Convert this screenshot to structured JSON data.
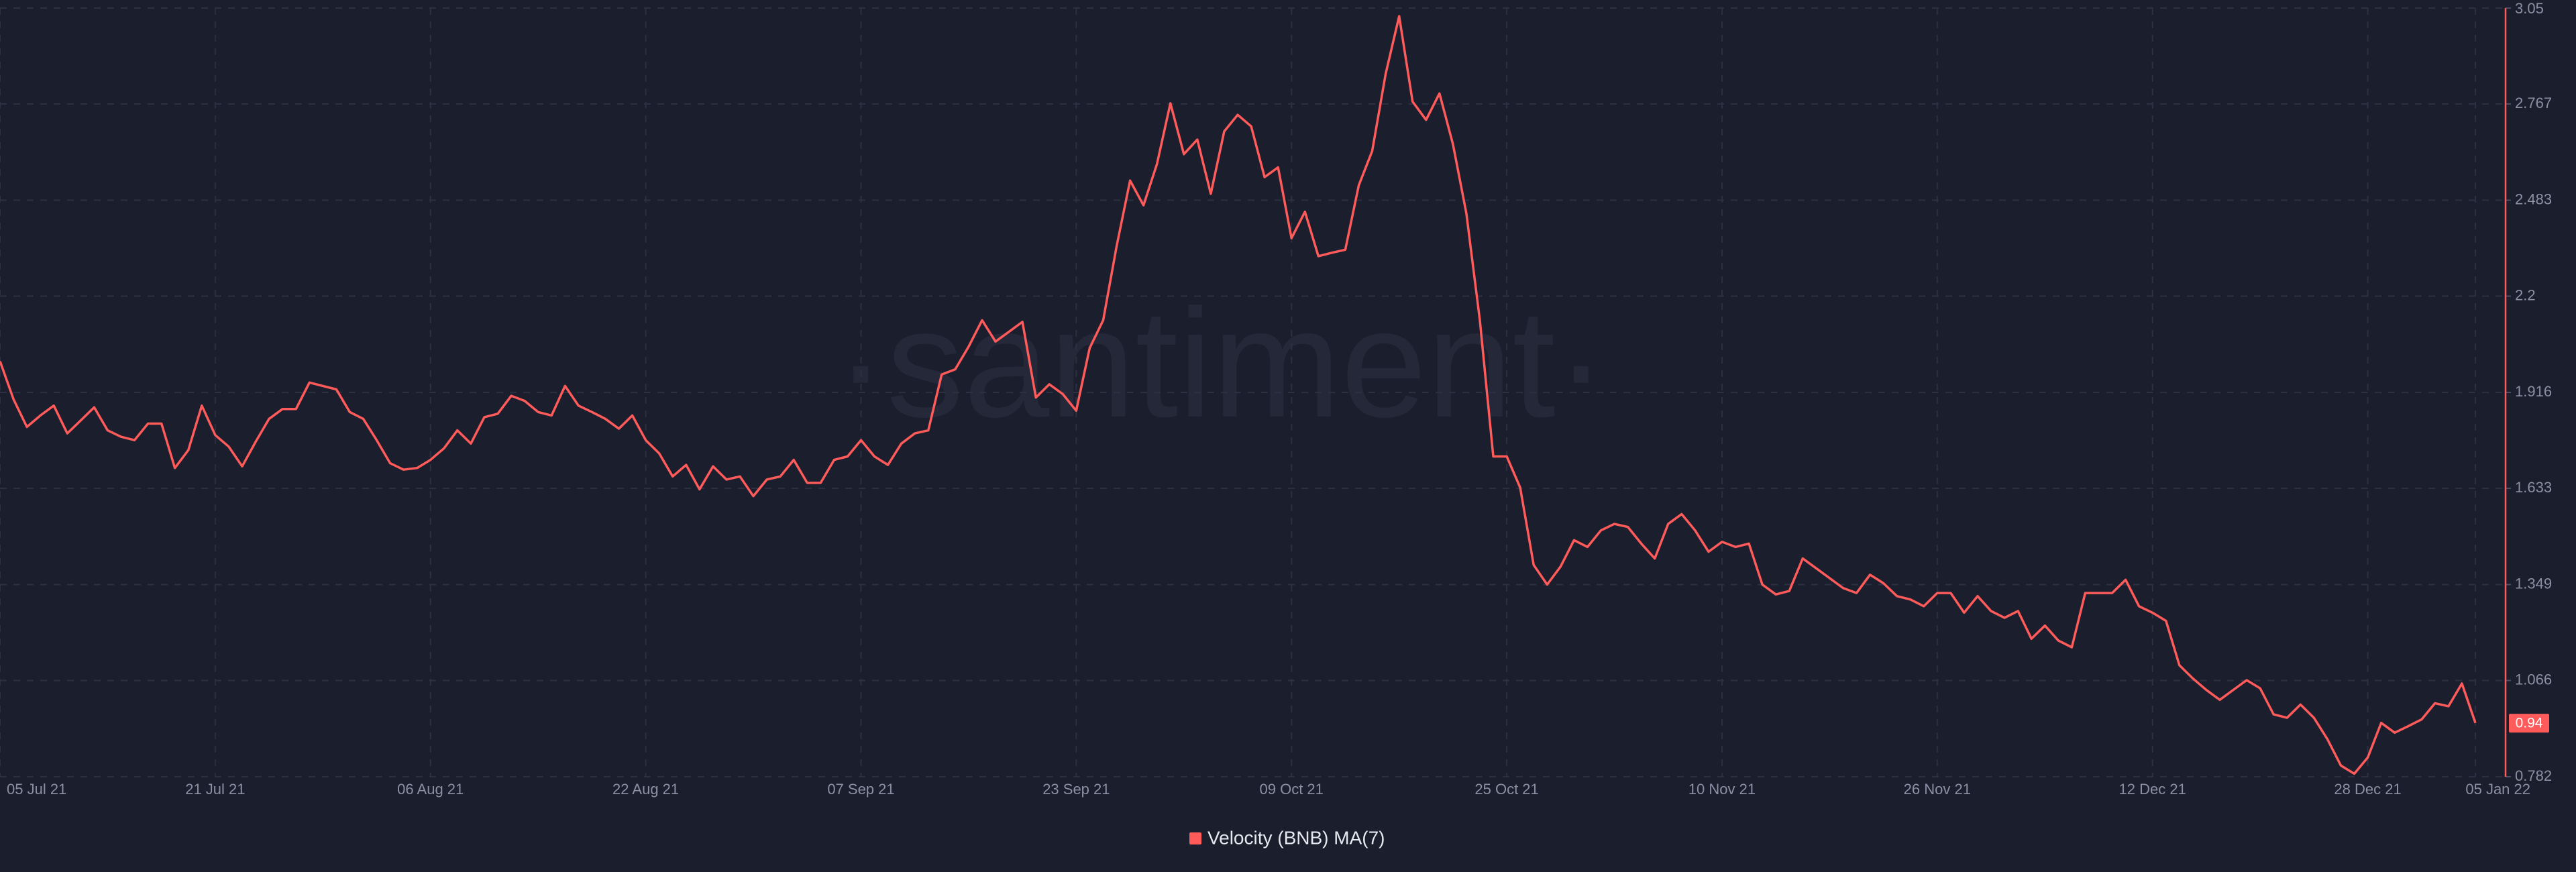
{
  "chart_data": {
    "type": "line",
    "watermark": "·santiment·",
    "categories": [
      "05 Jul 21",
      null,
      null,
      null,
      null,
      null,
      null,
      null,
      null,
      null,
      null,
      null,
      null,
      null,
      null,
      null,
      "21 Jul 21",
      null,
      null,
      null,
      null,
      null,
      null,
      null,
      null,
      null,
      null,
      null,
      null,
      null,
      null,
      null,
      "06 Aug 21",
      null,
      null,
      null,
      null,
      null,
      null,
      null,
      null,
      null,
      null,
      null,
      null,
      null,
      null,
      null,
      "22 Aug 21",
      null,
      null,
      null,
      null,
      null,
      null,
      null,
      null,
      null,
      null,
      null,
      null,
      null,
      null,
      null,
      "07 Sep 21",
      null,
      null,
      null,
      null,
      null,
      null,
      null,
      null,
      null,
      null,
      null,
      null,
      null,
      null,
      null,
      "23 Sep 21",
      null,
      null,
      null,
      null,
      null,
      null,
      null,
      null,
      null,
      null,
      null,
      null,
      null,
      null,
      null,
      "09 Oct 21",
      null,
      null,
      null,
      null,
      null,
      null,
      null,
      null,
      null,
      null,
      null,
      null,
      null,
      null,
      null,
      "25 Oct 21",
      null,
      null,
      null,
      null,
      null,
      null,
      null,
      null,
      null,
      null,
      null,
      null,
      null,
      null,
      null,
      "10 Nov 21",
      null,
      null,
      null,
      null,
      null,
      null,
      null,
      null,
      null,
      null,
      null,
      null,
      null,
      null,
      null,
      "26 Nov 21",
      null,
      null,
      null,
      null,
      null,
      null,
      null,
      null,
      null,
      null,
      null,
      null,
      null,
      null,
      null,
      "12 Dec 21",
      null,
      null,
      null,
      null,
      null,
      null,
      null,
      null,
      null,
      null,
      null,
      null,
      null,
      null,
      null,
      "28 Dec 21",
      null,
      null,
      null,
      null,
      null,
      null,
      null,
      "05 Jan 22"
    ],
    "series": [
      {
        "name": "Velocity (BNB) MA(7)",
        "color": "#ff5b5b",
        "axis": "y2",
        "current_value": 0.94,
        "values": [
          2.008,
          1.896,
          1.814,
          1.848,
          1.877,
          1.795,
          1.833,
          1.872,
          1.804,
          1.785,
          1.775,
          1.824,
          1.824,
          1.693,
          1.746,
          1.877,
          1.79,
          1.756,
          1.698,
          1.77,
          1.838,
          1.867,
          1.867,
          1.945,
          1.935,
          1.925,
          1.858,
          1.838,
          1.775,
          1.707,
          1.688,
          1.693,
          1.717,
          1.751,
          1.804,
          1.765,
          1.843,
          1.853,
          1.906,
          1.891,
          1.858,
          1.848,
          1.935,
          1.877,
          1.858,
          1.838,
          1.809,
          1.848,
          1.775,
          1.736,
          1.668,
          1.702,
          1.63,
          1.698,
          1.659,
          1.668,
          1.61,
          1.659,
          1.668,
          1.717,
          1.649,
          1.649,
          1.717,
          1.727,
          1.775,
          1.727,
          1.702,
          1.765,
          1.795,
          1.804,
          1.969,
          1.984,
          2.051,
          2.129,
          2.066,
          2.095,
          2.124,
          1.901,
          1.94,
          1.911,
          1.862,
          2.047,
          2.129,
          2.347,
          2.541,
          2.468,
          2.59,
          2.769,
          2.619,
          2.662,
          2.502,
          2.686,
          2.735,
          2.701,
          2.551,
          2.58,
          2.371,
          2.449,
          2.318,
          2.328,
          2.337,
          2.527,
          2.628,
          2.856,
          3.026,
          2.774,
          2.72,
          2.798,
          2.648,
          2.444,
          2.129,
          1.727,
          1.727,
          1.635,
          1.407,
          1.349,
          1.402,
          1.48,
          1.46,
          1.509,
          1.528,
          1.519,
          1.47,
          1.426,
          1.528,
          1.557,
          1.509,
          1.446,
          1.475,
          1.46,
          1.47,
          1.349,
          1.32,
          1.33,
          1.426,
          1.397,
          1.368,
          1.339,
          1.324,
          1.378,
          1.353,
          1.315,
          1.305,
          1.285,
          1.324,
          1.324,
          1.266,
          1.315,
          1.271,
          1.251,
          1.271,
          1.189,
          1.228,
          1.184,
          1.164,
          1.324,
          1.324,
          1.324,
          1.363,
          1.285,
          1.266,
          1.242,
          1.111,
          1.072,
          1.038,
          1.009,
          1.038,
          1.067,
          1.043,
          0.966,
          0.956,
          0.995,
          0.956,
          0.893,
          0.815,
          0.791,
          0.839,
          0.941,
          0.912,
          0.931,
          0.951,
          0.999,
          0.99,
          1.057,
          0.941
        ]
      }
    ],
    "y2lim": [
      0.782,
      3.05
    ],
    "y2ticks": [
      0.782,
      1.066,
      1.349,
      1.633,
      1.916,
      2.2,
      2.483,
      2.767,
      3.05
    ],
    "grid": true,
    "legend": "bottom"
  }
}
